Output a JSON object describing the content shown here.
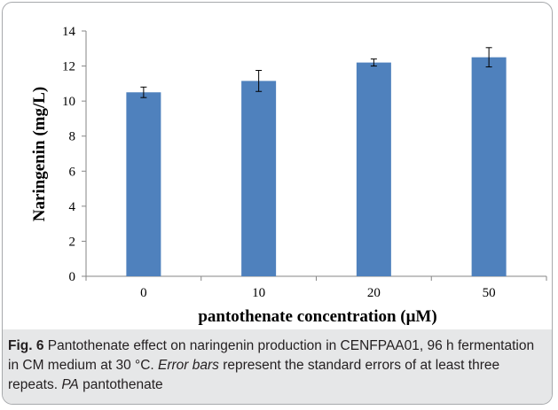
{
  "chart_data": {
    "type": "bar",
    "categories": [
      "0",
      "10",
      "20",
      "50"
    ],
    "series": [
      {
        "values": [
          10.5,
          11.15,
          12.2,
          12.5
        ],
        "error": [
          0.3,
          0.6,
          0.2,
          0.55
        ],
        "color": "#4f81bd"
      }
    ],
    "ylabel": "Naringenin  (mg/L)",
    "xlabel": "pantothenate  concentration  (μM)",
    "ylim": [
      0,
      14
    ],
    "yticks": [
      "0",
      "2",
      "4",
      "6",
      "8",
      "10",
      "12",
      "14"
    ],
    "grid": false
  },
  "caption": {
    "label": "Fig. 6",
    "text_1": "  Pantothenate effect on naringenin production in CENFPAA01, 96 h fermentation in CM medium at 30 °C. ",
    "italic_1": "Error bars",
    "text_2": " represent the standard errors of at least three repeats. ",
    "italic_2": "PA",
    "text_3": " pantothenate"
  }
}
